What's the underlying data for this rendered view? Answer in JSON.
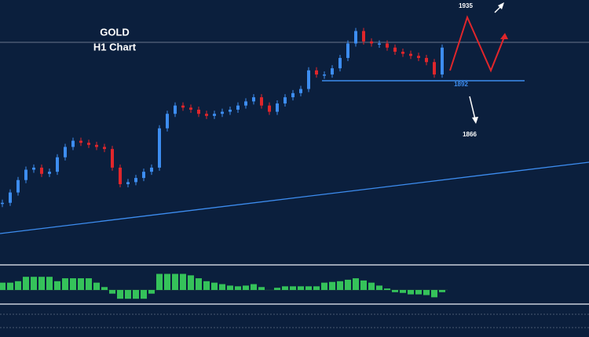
{
  "title": "GOLD",
  "subtitle": "H1 Chart",
  "levels": {
    "target_high": 1935,
    "support": 1892,
    "target_low": 1866
  },
  "chart_data": {
    "type": "candlestick",
    "ylim": [
      1803,
      1931
    ],
    "close": [
      1833,
      1838,
      1844,
      1849,
      1850,
      1847,
      1848,
      1855,
      1860,
      1863,
      1862,
      1861,
      1860,
      1859,
      1850,
      1842,
      1843,
      1845,
      1848,
      1850,
      1869,
      1876,
      1880,
      1879,
      1878,
      1876,
      1875,
      1876,
      1877,
      1878,
      1880,
      1882,
      1884,
      1880,
      1877,
      1881,
      1884,
      1886,
      1888,
      1897,
      1895,
      1895,
      1898,
      1903,
      1910,
      1916,
      1911,
      1910,
      1910,
      1908,
      1906,
      1905,
      1904,
      1903,
      1901,
      1895,
      1908
    ],
    "oscillator": {
      "ylim": [
        -15,
        30
      ],
      "values": [
        10,
        10,
        12,
        18,
        18,
        18,
        18,
        12,
        16,
        16,
        16,
        16,
        10,
        4,
        -5,
        -12,
        -12,
        -12,
        -12,
        -5,
        22,
        22,
        22,
        22,
        20,
        16,
        12,
        10,
        8,
        6,
        5,
        6,
        8,
        4,
        0,
        3,
        5,
        5,
        5,
        5,
        5,
        10,
        11,
        12,
        14,
        16,
        13,
        10,
        6,
        2,
        -3,
        -4,
        -6,
        -6,
        -7,
        -10,
        -3
      ]
    }
  }
}
